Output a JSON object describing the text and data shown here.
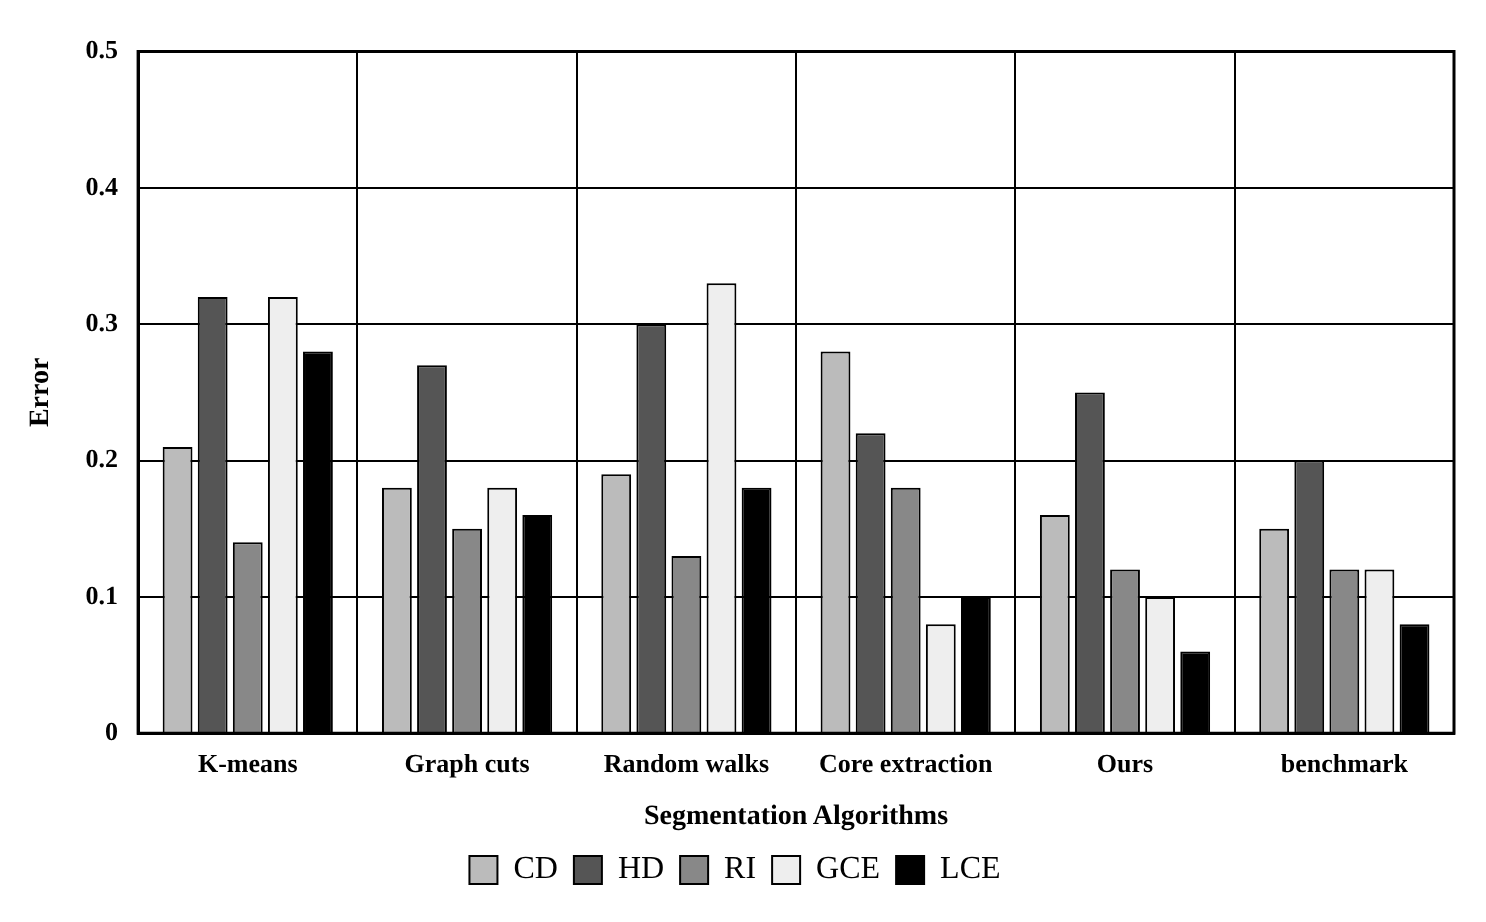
{
  "chart_data": {
    "type": "bar",
    "xlabel": "Segmentation Algorithms",
    "ylabel": "Error",
    "categories": [
      "K-means",
      "Graph cuts",
      "Random walks",
      "Core extraction",
      "Ours",
      "benchmark"
    ],
    "series": [
      {
        "name": "CD",
        "color": "#bbbbbb",
        "values": [
          0.21,
          0.18,
          0.19,
          0.28,
          0.16,
          0.15
        ]
      },
      {
        "name": "HD",
        "color": "#555555",
        "values": [
          0.32,
          0.27,
          0.3,
          0.22,
          0.25,
          0.2
        ]
      },
      {
        "name": "RI",
        "color": "#888888",
        "values": [
          0.14,
          0.15,
          0.13,
          0.18,
          0.12,
          0.12
        ]
      },
      {
        "name": "GCE",
        "color": "#eeeeee",
        "values": [
          0.32,
          0.18,
          0.33,
          0.08,
          0.1,
          0.12
        ]
      },
      {
        "name": "LCE",
        "color": "#000000",
        "values": [
          0.28,
          0.16,
          0.18,
          0.1,
          0.06,
          0.08
        ]
      }
    ],
    "ylim": [
      0,
      0.5
    ],
    "yticks": [
      0,
      0.1,
      0.2,
      0.3,
      0.4,
      0.5
    ],
    "grid": true,
    "legend": "bottom"
  }
}
